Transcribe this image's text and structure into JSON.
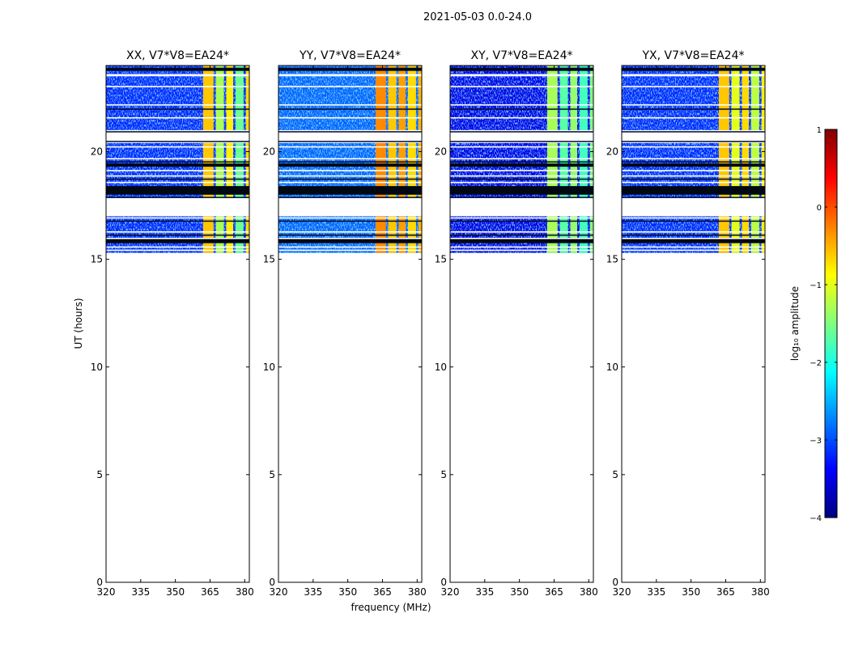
{
  "chart_data": {
    "type": "heatmap",
    "suptitle": "2021-05-03 0.0-24.0",
    "xlabel": "frequency (MHz)",
    "ylabel": "UT (hours)",
    "xlim": [
      320,
      382
    ],
    "ylim": [
      0,
      24
    ],
    "xticks": [
      320,
      335,
      350,
      365,
      380
    ],
    "yticks": [
      0,
      5,
      10,
      15,
      20
    ],
    "data_time_range": [
      15.3,
      24.0
    ],
    "blank_time_gaps": [
      [
        17.0,
        17.85
      ],
      [
        20.4,
        21.0
      ],
      [
        23.5,
        23.6
      ]
    ],
    "dark_time_bands": [
      [
        18.0,
        18.4
      ],
      [
        15.75,
        16.0
      ],
      [
        19.3,
        19.45
      ],
      [
        23.75,
        23.85
      ]
    ],
    "panels": [
      {
        "title": "XX, V7*V8=EA24*",
        "background_log_amp": -3.2,
        "rfi_log_amp": [
          -0.6,
          -1.3,
          -0.8,
          -1.6,
          -0.7
        ]
      },
      {
        "title": "YY, V7*V8=EA24*",
        "background_log_amp": -2.9,
        "rfi_log_amp": [
          -0.3,
          -0.6,
          -0.4,
          -0.7,
          -0.5
        ]
      },
      {
        "title": "XY, V7*V8=EA24*",
        "background_log_amp": -3.5,
        "rfi_log_amp": [
          -1.3,
          -1.7,
          -1.4,
          -1.8,
          -1.5
        ]
      },
      {
        "title": "YX, V7*V8=EA24*",
        "background_log_amp": -3.2,
        "rfi_log_amp": [
          -0.6,
          -1.0,
          -0.7,
          -1.2,
          -0.8
        ]
      }
    ],
    "rfi_channels_mhz": [
      [
        362,
        366.5
      ],
      [
        367.5,
        371
      ],
      [
        372,
        375
      ],
      [
        376,
        379.5
      ],
      [
        380.5,
        382
      ]
    ],
    "colorbar": {
      "label": "log₁₀ amplitude",
      "vmin": -4,
      "vmax": 1,
      "ticks": [
        "−4",
        "−3",
        "−2",
        "−1",
        "0",
        "1"
      ],
      "colormap": "jet"
    }
  }
}
